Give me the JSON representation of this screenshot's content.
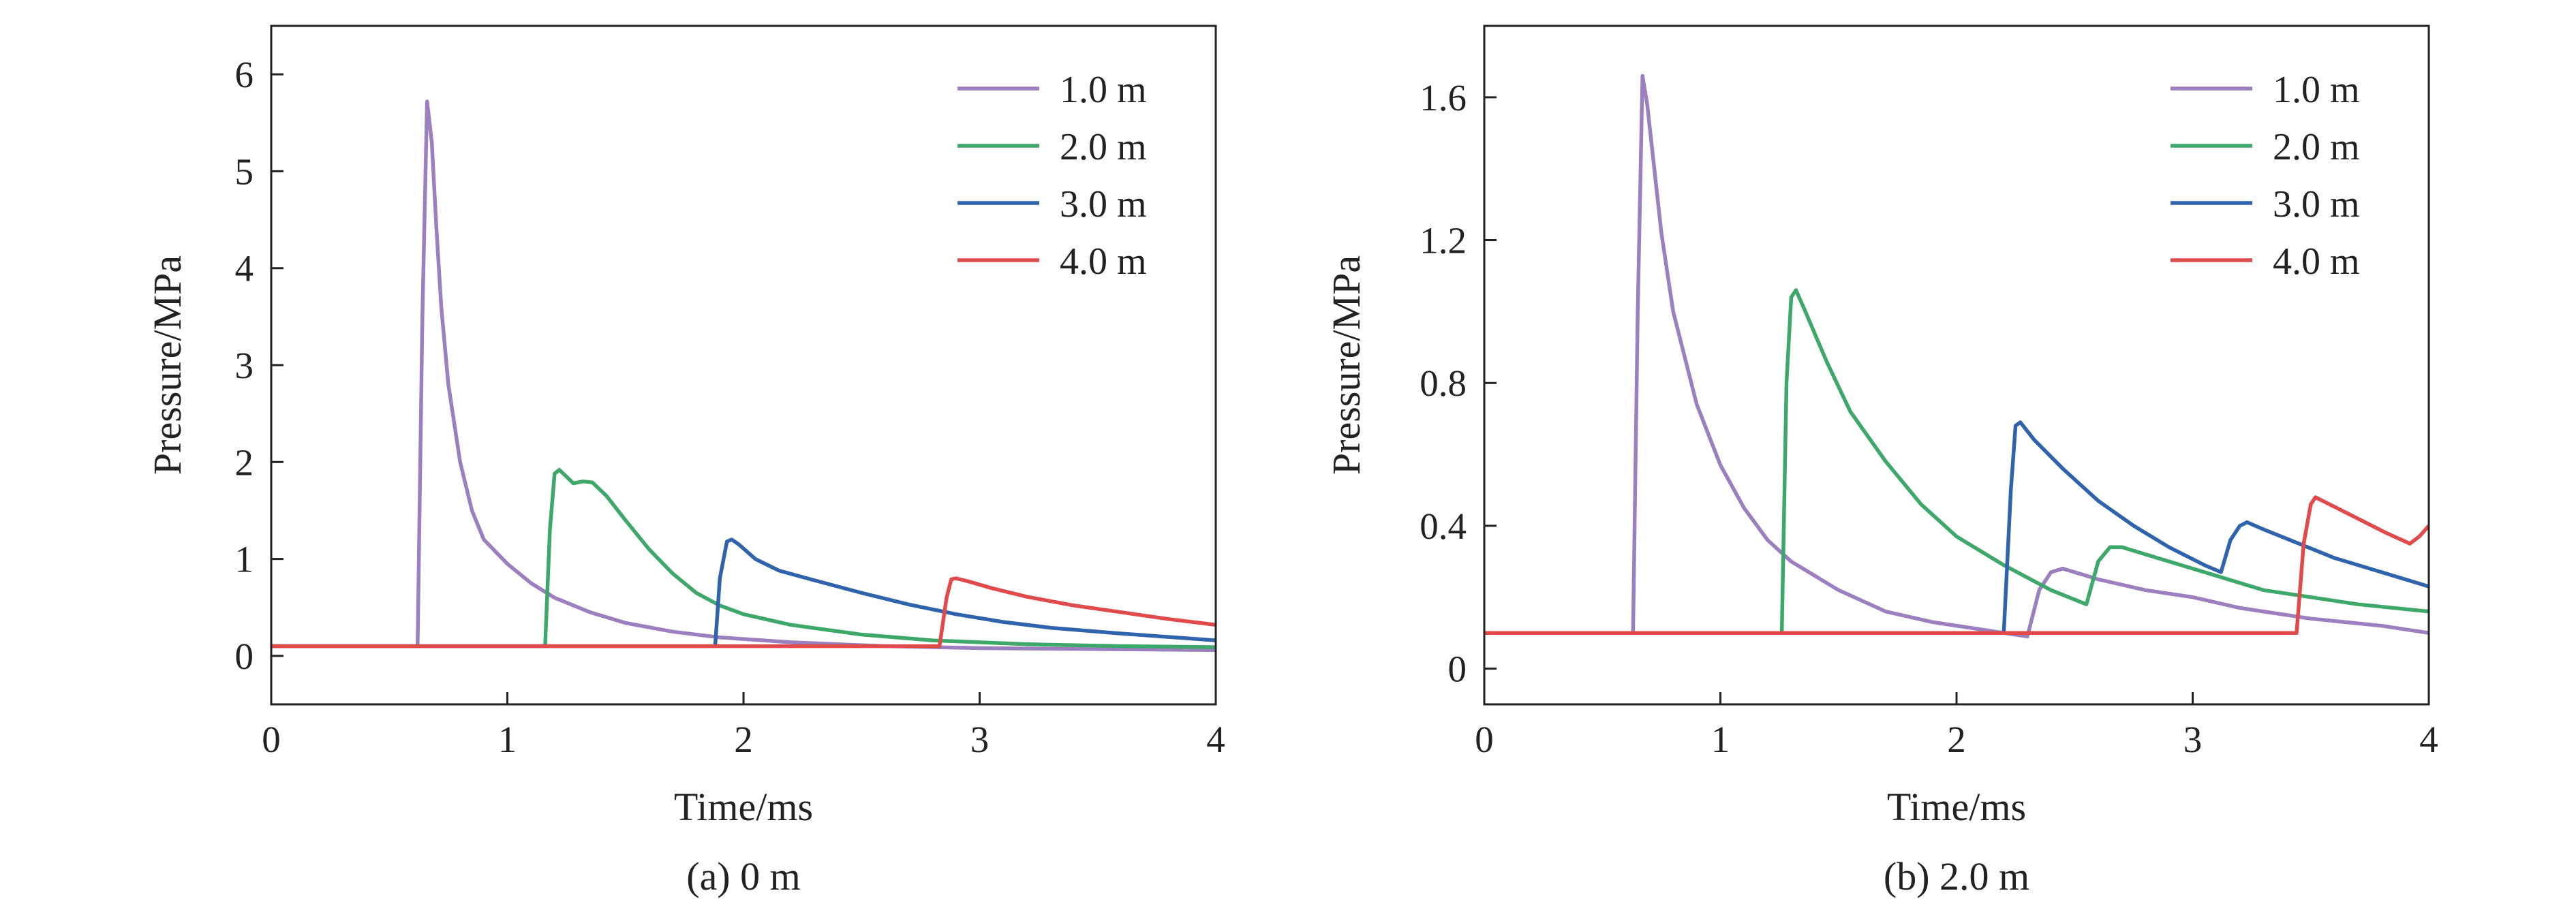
{
  "chart_data": [
    {
      "type": "line",
      "title": "",
      "caption": "(a) 0 m",
      "xlabel": "Time/ms",
      "ylabel": "Pressure/MPa",
      "xlim": [
        0,
        4
      ],
      "ylim": [
        -0.5,
        6.5
      ],
      "xticks": [
        0,
        1,
        2,
        3,
        4
      ],
      "yticks": [
        0,
        1,
        2,
        3,
        4,
        5,
        6
      ],
      "ytick_labels": [
        "0",
        "1",
        "2",
        "3",
        "4",
        "5",
        "6"
      ],
      "grid": false,
      "legend_position": "top-right",
      "series": [
        {
          "name": "1.0 m",
          "color": "#9b7fbf",
          "points": [
            [
              0,
              0.1
            ],
            [
              0.62,
              0.1
            ],
            [
              0.64,
              3.5
            ],
            [
              0.66,
              5.72
            ],
            [
              0.68,
              5.3
            ],
            [
              0.7,
              4.4
            ],
            [
              0.72,
              3.6
            ],
            [
              0.75,
              2.8
            ],
            [
              0.8,
              2.0
            ],
            [
              0.85,
              1.5
            ],
            [
              0.9,
              1.2
            ],
            [
              1.0,
              0.95
            ],
            [
              1.1,
              0.75
            ],
            [
              1.2,
              0.6
            ],
            [
              1.35,
              0.45
            ],
            [
              1.5,
              0.34
            ],
            [
              1.7,
              0.25
            ],
            [
              1.9,
              0.19
            ],
            [
              2.2,
              0.14
            ],
            [
              2.6,
              0.1
            ],
            [
              3.0,
              0.08
            ],
            [
              3.5,
              0.07
            ],
            [
              4.0,
              0.06
            ]
          ]
        },
        {
          "name": "2.0 m",
          "color": "#3ea86a",
          "points": [
            [
              0,
              0.1
            ],
            [
              1.16,
              0.1
            ],
            [
              1.18,
              1.3
            ],
            [
              1.2,
              1.88
            ],
            [
              1.22,
              1.92
            ],
            [
              1.25,
              1.85
            ],
            [
              1.28,
              1.78
            ],
            [
              1.32,
              1.8
            ],
            [
              1.36,
              1.79
            ],
            [
              1.42,
              1.65
            ],
            [
              1.5,
              1.4
            ],
            [
              1.6,
              1.1
            ],
            [
              1.7,
              0.85
            ],
            [
              1.8,
              0.65
            ],
            [
              1.9,
              0.52
            ],
            [
              2.0,
              0.43
            ],
            [
              2.2,
              0.32
            ],
            [
              2.5,
              0.22
            ],
            [
              2.8,
              0.16
            ],
            [
              3.2,
              0.12
            ],
            [
              3.6,
              0.1
            ],
            [
              4.0,
              0.09
            ]
          ]
        },
        {
          "name": "3.0 m",
          "color": "#2f64ad",
          "points": [
            [
              0,
              0.1
            ],
            [
              1.88,
              0.1
            ],
            [
              1.9,
              0.8
            ],
            [
              1.93,
              1.18
            ],
            [
              1.95,
              1.2
            ],
            [
              1.98,
              1.15
            ],
            [
              2.05,
              1.0
            ],
            [
              2.15,
              0.88
            ],
            [
              2.3,
              0.78
            ],
            [
              2.5,
              0.65
            ],
            [
              2.7,
              0.53
            ],
            [
              2.9,
              0.43
            ],
            [
              3.1,
              0.35
            ],
            [
              3.3,
              0.29
            ],
            [
              3.6,
              0.23
            ],
            [
              4.0,
              0.16
            ]
          ]
        },
        {
          "name": "4.0 m",
          "color": "#e04a4a",
          "points": [
            [
              0,
              0.1
            ],
            [
              2.83,
              0.1
            ],
            [
              2.86,
              0.6
            ],
            [
              2.88,
              0.79
            ],
            [
              2.9,
              0.8
            ],
            [
              2.95,
              0.77
            ],
            [
              3.05,
              0.7
            ],
            [
              3.2,
              0.61
            ],
            [
              3.4,
              0.52
            ],
            [
              3.6,
              0.45
            ],
            [
              3.8,
              0.38
            ],
            [
              4.0,
              0.32
            ]
          ]
        }
      ]
    },
    {
      "type": "line",
      "title": "",
      "caption": "(b) 2.0 m",
      "xlabel": "Time/ms",
      "ylabel": "Pressure/MPa",
      "xlim": [
        0,
        4
      ],
      "ylim": [
        -0.1,
        1.8
      ],
      "xticks": [
        0,
        1,
        2,
        3,
        4
      ],
      "yticks": [
        0,
        0.4,
        0.8,
        1.2,
        1.6
      ],
      "ytick_labels": [
        "0",
        "0.4",
        "0.8",
        "1.2",
        "1.6"
      ],
      "grid": false,
      "legend_position": "top-right",
      "series": [
        {
          "name": "1.0 m",
          "color": "#9b7fbf",
          "points": [
            [
              0,
              0.1
            ],
            [
              0.63,
              0.1
            ],
            [
              0.65,
              1.0
            ],
            [
              0.67,
              1.66
            ],
            [
              0.69,
              1.58
            ],
            [
              0.72,
              1.4
            ],
            [
              0.75,
              1.22
            ],
            [
              0.8,
              1.0
            ],
            [
              0.9,
              0.74
            ],
            [
              1.0,
              0.57
            ],
            [
              1.1,
              0.45
            ],
            [
              1.2,
              0.36
            ],
            [
              1.3,
              0.3
            ],
            [
              1.5,
              0.22
            ],
            [
              1.7,
              0.16
            ],
            [
              1.9,
              0.13
            ],
            [
              2.1,
              0.11
            ],
            [
              2.3,
              0.09
            ],
            [
              2.35,
              0.22
            ],
            [
              2.4,
              0.27
            ],
            [
              2.45,
              0.28
            ],
            [
              2.6,
              0.25
            ],
            [
              2.8,
              0.22
            ],
            [
              3.0,
              0.2
            ],
            [
              3.2,
              0.17
            ],
            [
              3.5,
              0.14
            ],
            [
              3.8,
              0.12
            ],
            [
              4.0,
              0.1
            ]
          ]
        },
        {
          "name": "2.0 m",
          "color": "#3ea86a",
          "points": [
            [
              0,
              0.1
            ],
            [
              1.26,
              0.1
            ],
            [
              1.28,
              0.8
            ],
            [
              1.3,
              1.04
            ],
            [
              1.32,
              1.06
            ],
            [
              1.36,
              1.0
            ],
            [
              1.45,
              0.86
            ],
            [
              1.55,
              0.72
            ],
            [
              1.7,
              0.58
            ],
            [
              1.85,
              0.46
            ],
            [
              2.0,
              0.37
            ],
            [
              2.2,
              0.29
            ],
            [
              2.4,
              0.22
            ],
            [
              2.55,
              0.18
            ],
            [
              2.6,
              0.3
            ],
            [
              2.65,
              0.34
            ],
            [
              2.7,
              0.34
            ],
            [
              2.9,
              0.3
            ],
            [
              3.1,
              0.26
            ],
            [
              3.3,
              0.22
            ],
            [
              3.5,
              0.2
            ],
            [
              3.7,
              0.18
            ],
            [
              4.0,
              0.16
            ]
          ]
        },
        {
          "name": "3.0 m",
          "color": "#2f64ad",
          "points": [
            [
              0,
              0.1
            ],
            [
              2.2,
              0.1
            ],
            [
              2.23,
              0.5
            ],
            [
              2.25,
              0.68
            ],
            [
              2.27,
              0.69
            ],
            [
              2.33,
              0.64
            ],
            [
              2.45,
              0.56
            ],
            [
              2.6,
              0.47
            ],
            [
              2.75,
              0.4
            ],
            [
              2.9,
              0.34
            ],
            [
              3.05,
              0.29
            ],
            [
              3.12,
              0.27
            ],
            [
              3.16,
              0.36
            ],
            [
              3.2,
              0.4
            ],
            [
              3.23,
              0.41
            ],
            [
              3.3,
              0.39
            ],
            [
              3.45,
              0.35
            ],
            [
              3.6,
              0.31
            ],
            [
              3.8,
              0.27
            ],
            [
              4.0,
              0.23
            ]
          ]
        },
        {
          "name": "4.0 m",
          "color": "#e04a4a",
          "points": [
            [
              0,
              0.1
            ],
            [
              3.44,
              0.1
            ],
            [
              3.47,
              0.35
            ],
            [
              3.5,
              0.46
            ],
            [
              3.52,
              0.48
            ],
            [
              3.58,
              0.46
            ],
            [
              3.7,
              0.42
            ],
            [
              3.82,
              0.38
            ],
            [
              3.92,
              0.35
            ],
            [
              3.96,
              0.37
            ],
            [
              4.0,
              0.4
            ]
          ]
        }
      ]
    }
  ]
}
